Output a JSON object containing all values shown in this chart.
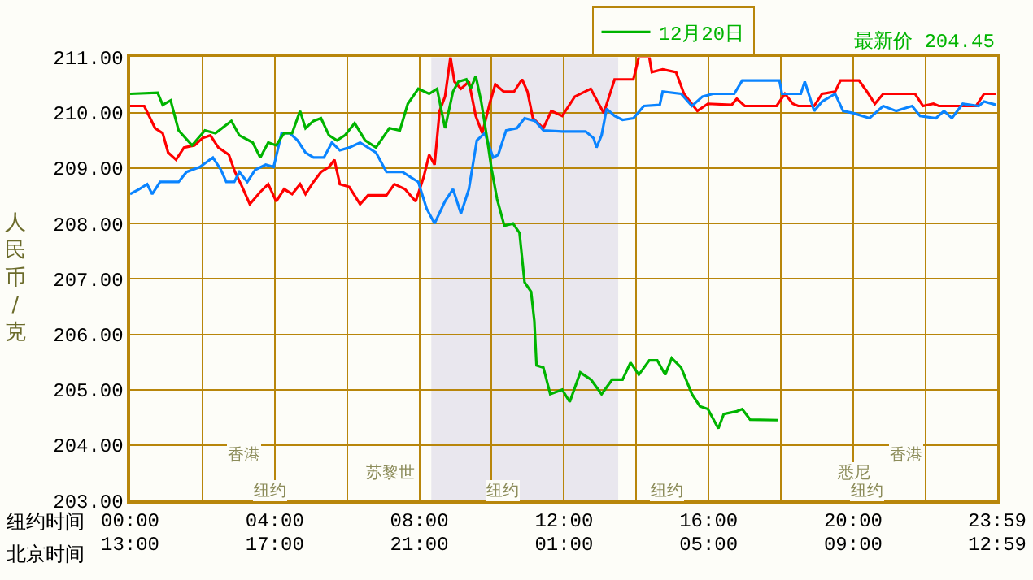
{
  "chart_data": {
    "type": "line",
    "ylabel": "人民币/克",
    "xlabel": "纽约时间",
    "x2label": "北京时间",
    "xlim": [
      0,
      23.983
    ],
    "ylim": [
      203,
      211
    ],
    "xticks": [
      {
        "value": 0,
        "label": "00:00"
      },
      {
        "value": 2,
        "label": null
      },
      {
        "value": 4,
        "label": "04:00"
      },
      {
        "value": 6,
        "label": null
      },
      {
        "value": 8,
        "label": "08:00"
      },
      {
        "value": 10,
        "label": null
      },
      {
        "value": 12,
        "label": "12:00"
      },
      {
        "value": 14,
        "label": null
      },
      {
        "value": 16,
        "label": "16:00"
      },
      {
        "value": 18,
        "label": null
      },
      {
        "value": 20,
        "label": "20:00"
      },
      {
        "value": 22,
        "label": null
      },
      {
        "value": 23.983,
        "label": "23:59"
      }
    ],
    "x2lim": [
      "--12-20T13:00",
      "--12-21T12:59"
    ],
    "x2ticks": [
      {
        "value": "--12-20T13:00",
        "label": "13:00"
      },
      {
        "value": "--12-20T17:00",
        "label": "17:00"
      },
      {
        "value": "--12-20T21:00",
        "label": "21:00"
      },
      {
        "value": "--12-21T01:00",
        "label": "01:00"
      },
      {
        "value": "--12-21T05:00",
        "label": "05:00"
      },
      {
        "value": "--12-21T09:00",
        "label": "09:00"
      },
      {
        "value": "--12-21T12:59",
        "label": "12:59"
      }
    ],
    "yticks": [
      {
        "value": 203,
        "label": "203.00"
      },
      {
        "value": 204,
        "label": "204.00"
      },
      {
        "value": 205,
        "label": "205.00"
      },
      {
        "value": 206,
        "label": "206.00"
      },
      {
        "value": 207,
        "label": "207.00"
      },
      {
        "value": 208,
        "label": "208.00"
      },
      {
        "value": 209,
        "label": "209.00"
      },
      {
        "value": 210,
        "label": "210.00"
      },
      {
        "value": 211,
        "label": "211.00"
      }
    ],
    "grid": true,
    "legend": "top right",
    "marker": "none",
    "line_style": "solid",
    "bands": [
      {
        "axis": "x",
        "from": 8.33,
        "to": 13.5,
        "color": "#e9e7ee"
      }
    ],
    "annotations": [
      "最新价 204.45",
      "香港",
      "苏黎世",
      "纽约",
      "纽约",
      "纽约",
      "悉尼",
      "香港",
      "纽约"
    ],
    "series": [
      {
        "color": "#ff0000",
        "x": [
          0,
          0.39,
          0.69,
          0.9,
          1.05,
          1.27,
          1.49,
          1.78,
          2.0,
          2.22,
          2.44,
          2.73,
          2.9,
          3.1,
          3.31,
          3.6,
          3.82,
          4.04,
          4.26,
          4.48,
          4.7,
          4.85,
          5.07,
          5.28,
          5.5,
          5.65,
          5.8,
          6.06,
          6.36,
          6.58,
          7.09,
          7.31,
          7.6,
          7.9,
          8.12,
          8.27,
          8.42,
          8.56,
          8.71,
          8.86,
          8.97,
          9.15,
          9.37,
          9.56,
          9.74,
          9.96,
          10.1,
          10.33,
          10.62,
          10.84,
          10.99,
          11.14,
          11.43,
          11.65,
          11.95,
          12.3,
          12.74,
          13.1,
          13.4,
          13.92,
          14.07,
          14.36,
          14.43,
          14.73,
          15.1,
          15.32,
          15.69,
          15.98,
          16.64,
          16.78,
          17.0,
          17.88,
          18.11,
          18.33,
          18.48,
          18.92,
          19.14,
          19.5,
          19.65,
          20.16,
          20.38,
          20.6,
          20.83,
          21.71,
          21.93,
          22.22,
          22.37,
          23.4,
          23.62,
          23.95
        ],
        "values": [
          210.12,
          210.12,
          209.72,
          209.63,
          209.28,
          209.15,
          209.37,
          209.41,
          209.54,
          209.59,
          209.37,
          209.24,
          208.93,
          208.66,
          208.35,
          208.57,
          208.71,
          208.4,
          208.62,
          208.53,
          208.71,
          208.53,
          208.75,
          208.93,
          209.02,
          209.15,
          208.71,
          208.66,
          208.35,
          208.51,
          208.51,
          208.71,
          208.62,
          208.4,
          208.84,
          209.24,
          209.06,
          210.03,
          210.29,
          211.0,
          210.56,
          210.43,
          210.56,
          209.94,
          209.63,
          210.2,
          210.51,
          210.38,
          210.38,
          210.6,
          210.38,
          209.9,
          209.72,
          210.03,
          209.94,
          210.29,
          210.43,
          209.99,
          210.6,
          210.6,
          211.0,
          211.0,
          210.73,
          210.78,
          210.73,
          210.34,
          210.03,
          210.16,
          210.14,
          210.25,
          210.12,
          210.12,
          210.34,
          210.16,
          210.12,
          210.12,
          210.34,
          210.38,
          210.58,
          210.58,
          210.38,
          210.16,
          210.34,
          210.34,
          210.12,
          210.16,
          210.12,
          210.12,
          210.34,
          210.34
        ]
      },
      {
        "color": "#0a84ff",
        "x": [
          0,
          0.25,
          0.47,
          0.61,
          0.83,
          1.34,
          1.56,
          1.93,
          2.29,
          2.51,
          2.66,
          2.88,
          3.02,
          3.24,
          3.46,
          3.75,
          3.97,
          4.19,
          4.41,
          4.63,
          4.85,
          5.07,
          5.36,
          5.58,
          5.8,
          6.06,
          6.36,
          6.8,
          7.09,
          7.53,
          7.97,
          8.2,
          8.42,
          8.71,
          8.93,
          9.15,
          9.37,
          9.59,
          9.81,
          10.04,
          10.18,
          10.4,
          10.7,
          10.91,
          11.2,
          11.43,
          11.95,
          12.6,
          12.82,
          12.9,
          13.04,
          13.18,
          13.4,
          13.62,
          13.92,
          14.21,
          14.65,
          14.73,
          15.24,
          15.54,
          15.83,
          16.12,
          16.71,
          16.93,
          17.96,
          18.03,
          18.55,
          18.66,
          18.92,
          19.14,
          19.5,
          19.72,
          20.01,
          20.45,
          20.83,
          21.19,
          21.63,
          21.85,
          22.29,
          22.51,
          22.73,
          23.03,
          23.47,
          23.62,
          23.95
        ],
        "values": [
          208.53,
          208.62,
          208.71,
          208.53,
          208.75,
          208.75,
          208.93,
          209.02,
          209.19,
          208.97,
          208.75,
          208.75,
          208.93,
          208.75,
          208.97,
          209.06,
          209.02,
          209.63,
          209.63,
          209.5,
          209.28,
          209.19,
          209.19,
          209.46,
          209.32,
          209.37,
          209.46,
          209.28,
          208.93,
          208.93,
          208.75,
          208.27,
          208.0,
          208.4,
          208.62,
          208.18,
          208.62,
          209.5,
          209.63,
          209.19,
          209.24,
          209.68,
          209.72,
          209.9,
          209.85,
          209.68,
          209.66,
          209.66,
          209.54,
          209.37,
          209.59,
          210.07,
          209.94,
          209.87,
          209.9,
          210.12,
          210.14,
          210.38,
          210.34,
          210.12,
          210.29,
          210.34,
          210.34,
          210.58,
          210.58,
          210.34,
          210.34,
          210.56,
          210.03,
          210.2,
          210.34,
          210.03,
          209.99,
          209.9,
          210.12,
          210.03,
          210.12,
          209.94,
          209.9,
          210.03,
          209.9,
          210.16,
          210.12,
          210.2,
          210.14
        ]
      },
      {
        "name": "12月20日",
        "color": "#00b400",
        "x": [
          0,
          0.76,
          0.9,
          1.12,
          1.34,
          1.71,
          2.07,
          2.36,
          2.8,
          3.02,
          3.39,
          3.6,
          3.82,
          4.04,
          4.26,
          4.48,
          4.7,
          4.85,
          5.07,
          5.28,
          5.5,
          5.72,
          5.94,
          6.21,
          6.5,
          6.8,
          7.17,
          7.46,
          7.68,
          7.97,
          8.27,
          8.49,
          8.71,
          8.93,
          9.08,
          9.3,
          9.42,
          9.56,
          9.71,
          9.86,
          10.0,
          10.15,
          10.35,
          10.59,
          10.77,
          10.91,
          11.09,
          11.18,
          11.24,
          11.43,
          11.62,
          11.95,
          12.16,
          12.45,
          12.75,
          13.04,
          13.33,
          13.62,
          13.84,
          14.07,
          14.36,
          14.58,
          14.8,
          14.98,
          15.24,
          15.54,
          15.76,
          15.98,
          16.27,
          16.42,
          16.78,
          16.93,
          17.15,
          17.93
        ],
        "values": [
          210.34,
          210.36,
          210.14,
          210.22,
          209.68,
          209.41,
          209.68,
          209.63,
          209.85,
          209.59,
          209.46,
          209.19,
          209.46,
          209.41,
          209.63,
          209.63,
          210.03,
          209.72,
          209.85,
          209.9,
          209.59,
          209.5,
          209.59,
          209.81,
          209.5,
          209.37,
          209.72,
          209.68,
          210.16,
          210.43,
          210.34,
          210.43,
          209.72,
          210.38,
          210.56,
          210.6,
          210.43,
          210.66,
          210.2,
          209.59,
          208.97,
          208.44,
          207.96,
          208.0,
          207.83,
          206.94,
          206.77,
          206.24,
          205.44,
          205.4,
          204.92,
          205.0,
          204.78,
          205.31,
          205.18,
          204.92,
          205.18,
          205.18,
          205.49,
          205.27,
          205.53,
          205.53,
          205.27,
          205.57,
          205.4,
          204.92,
          204.7,
          204.65,
          204.3,
          204.56,
          204.61,
          204.65,
          204.46,
          204.45
        ]
      }
    ]
  }
}
